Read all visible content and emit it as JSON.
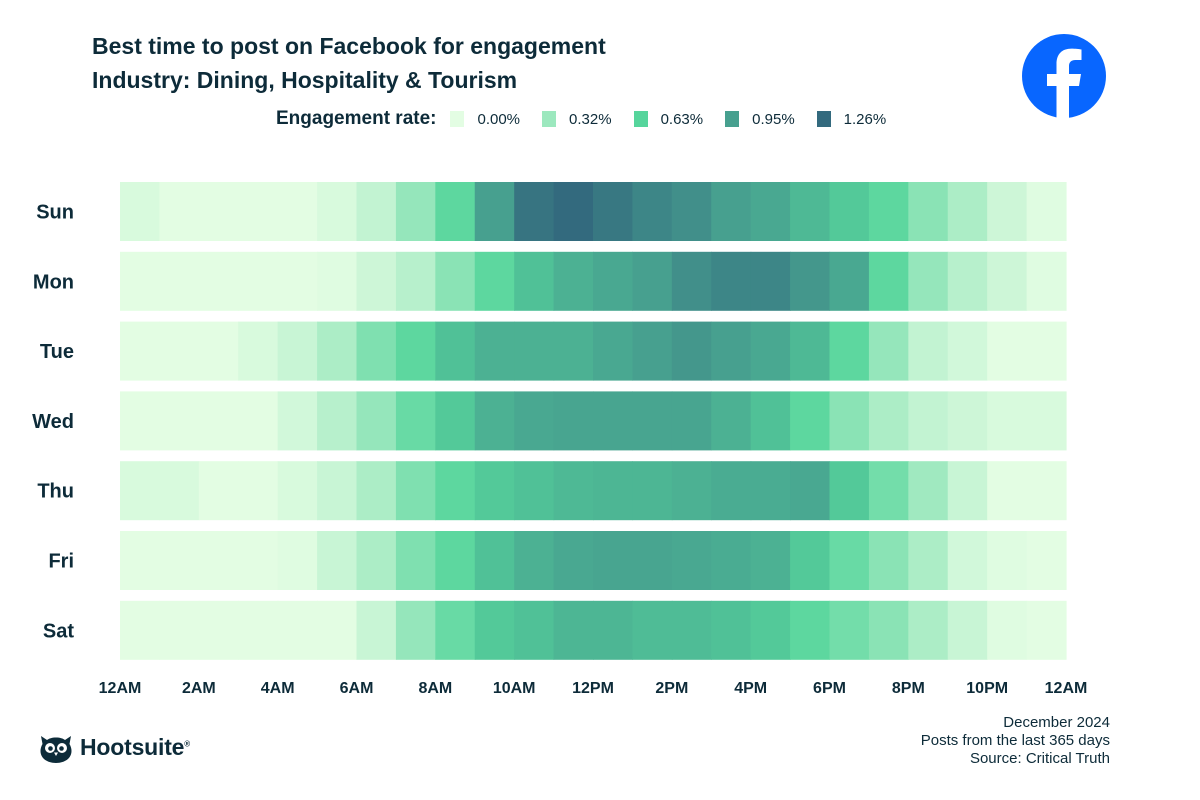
{
  "header": {
    "title": "Best time to post on Facebook for engagement",
    "subtitle": "Industry: Dining, Hospitality & Tourism"
  },
  "legend": {
    "title": "Engagement rate:",
    "items": [
      {
        "label": "0.00%",
        "color": "#e3fde3"
      },
      {
        "label": "0.32%",
        "color": "#9ce8be"
      },
      {
        "label": "0.63%",
        "color": "#56d59c"
      },
      {
        "label": "0.95%",
        "color": "#47a08f"
      },
      {
        "label": "1.26%",
        "color": "#336a7e"
      }
    ]
  },
  "chart_data": {
    "type": "heatmap",
    "title": "Best time to post on Facebook for engagement",
    "subtitle": "Industry: Dining, Hospitality & Tourism",
    "rows": [
      "Sun",
      "Mon",
      "Tue",
      "Wed",
      "Thu",
      "Fri",
      "Sat"
    ],
    "x_tick_labels": [
      "12AM",
      "2AM",
      "4AM",
      "6AM",
      "8AM",
      "10AM",
      "12PM",
      "2PM",
      "4PM",
      "6PM",
      "8PM",
      "10PM",
      "12AM"
    ],
    "hours_per_row": 24,
    "scale": {
      "min": 0.0,
      "max": 1.26,
      "unit": "%",
      "stops": [
        0.0,
        0.32,
        0.63,
        0.95,
        1.26
      ]
    },
    "values": [
      [
        0.05,
        0.0,
        0.0,
        0.0,
        0.0,
        0.05,
        0.15,
        0.35,
        0.6,
        0.95,
        1.2,
        1.26,
        1.18,
        1.1,
        1.05,
        0.95,
        0.9,
        0.8,
        0.7,
        0.6,
        0.4,
        0.25,
        0.1,
        0.02
      ],
      [
        0.0,
        0.0,
        0.0,
        0.0,
        0.0,
        0.02,
        0.1,
        0.2,
        0.4,
        0.6,
        0.75,
        0.85,
        0.9,
        0.95,
        1.05,
        1.1,
        1.1,
        1.0,
        0.9,
        0.6,
        0.35,
        0.2,
        0.1,
        0.02
      ],
      [
        0.0,
        0.0,
        0.0,
        0.05,
        0.12,
        0.25,
        0.45,
        0.6,
        0.75,
        0.85,
        0.85,
        0.85,
        0.9,
        0.95,
        1.0,
        0.95,
        0.9,
        0.8,
        0.6,
        0.35,
        0.15,
        0.08,
        0.0,
        0.0
      ],
      [
        0.0,
        0.0,
        0.0,
        0.0,
        0.08,
        0.2,
        0.35,
        0.55,
        0.7,
        0.85,
        0.9,
        0.92,
        0.92,
        0.92,
        0.92,
        0.85,
        0.75,
        0.6,
        0.4,
        0.25,
        0.15,
        0.1,
        0.05,
        0.05
      ],
      [
        0.05,
        0.05,
        0.0,
        0.0,
        0.05,
        0.12,
        0.25,
        0.45,
        0.6,
        0.7,
        0.75,
        0.8,
        0.82,
        0.82,
        0.85,
        0.88,
        0.88,
        0.9,
        0.7,
        0.5,
        0.3,
        0.12,
        0.0,
        0.0
      ],
      [
        0.0,
        0.0,
        0.0,
        0.0,
        0.02,
        0.12,
        0.25,
        0.45,
        0.6,
        0.75,
        0.85,
        0.9,
        0.92,
        0.92,
        0.9,
        0.88,
        0.85,
        0.7,
        0.55,
        0.4,
        0.25,
        0.08,
        0.02,
        0.0
      ],
      [
        0.0,
        0.0,
        0.0,
        0.0,
        0.0,
        0.0,
        0.12,
        0.35,
        0.55,
        0.7,
        0.75,
        0.82,
        0.82,
        0.78,
        0.78,
        0.75,
        0.7,
        0.6,
        0.5,
        0.4,
        0.25,
        0.12,
        0.02,
        0.0
      ]
    ]
  },
  "footer": {
    "date": "December 2024",
    "scope": "Posts from the last 365 days",
    "source": "Source: Critical Truth"
  },
  "brand": {
    "name": "Hootsuite",
    "reg": "®",
    "logo_icon": "owl-icon"
  },
  "social_icon": "facebook-icon"
}
